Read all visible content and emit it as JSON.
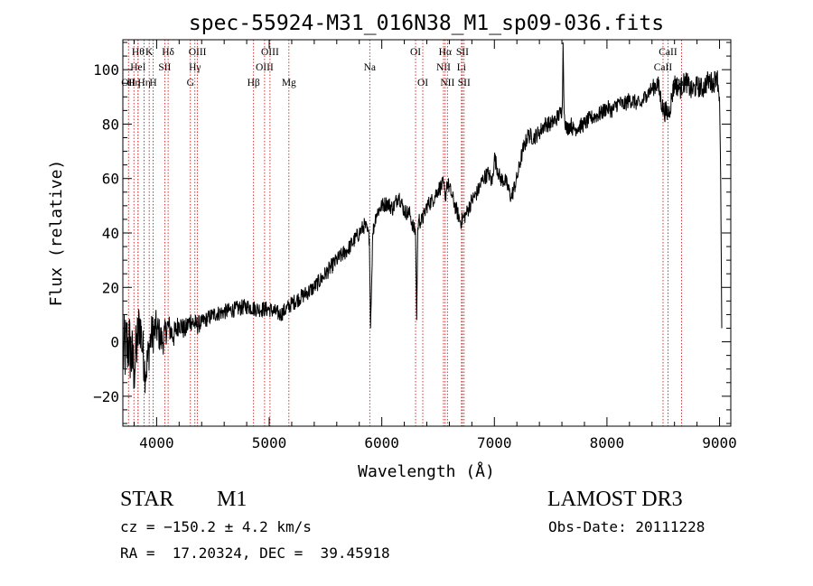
{
  "chart_data": {
    "type": "line",
    "title": "spec-55924-M31_016N38_M1_sp09-036.fits",
    "xlabel": "Wavelength (Å)",
    "ylabel": "Flux (relative)",
    "xlim": [
      3700,
      9100
    ],
    "ylim": [
      -31,
      111
    ],
    "xticks": [
      4000,
      5000,
      6000,
      7000,
      8000,
      9000
    ],
    "yticks": [
      -20,
      0,
      20,
      40,
      60,
      80,
      100
    ],
    "series": [
      {
        "name": "flux",
        "color": "#000000",
        "x": [
          3700,
          3750,
          3800,
          3850,
          3900,
          3950,
          4000,
          4050,
          4100,
          4150,
          4200,
          4250,
          4300,
          4350,
          4400,
          4500,
          4600,
          4700,
          4800,
          4900,
          5000,
          5100,
          5200,
          5300,
          5400,
          5500,
          5600,
          5700,
          5800,
          5850,
          5890,
          5900,
          5920,
          5950,
          6000,
          6050,
          6100,
          6150,
          6200,
          6250,
          6280,
          6300,
          6310,
          6320,
          6330,
          6350,
          6380,
          6400,
          6450,
          6500,
          6550,
          6563,
          6580,
          6620,
          6650,
          6700,
          6750,
          6800,
          6850,
          6900,
          6950,
          6980,
          7000,
          7050,
          7100,
          7150,
          7200,
          7250,
          7300,
          7350,
          7400,
          7450,
          7500,
          7550,
          7600,
          7605,
          7610,
          7620,
          7640,
          7680,
          7700,
          7750,
          7800,
          7850,
          7900,
          7950,
          8000,
          8050,
          8100,
          8150,
          8200,
          8250,
          8300,
          8350,
          8400,
          8450,
          8500,
          8550,
          8600,
          8650,
          8700,
          8750,
          8800,
          8850,
          8900,
          8950,
          8975,
          9000,
          9010,
          9020
        ],
        "y": [
          -5,
          0,
          -10,
          8,
          -12,
          2,
          5,
          0,
          6,
          2,
          7,
          4,
          8,
          6,
          7,
          10,
          11,
          12,
          13,
          12,
          12,
          10,
          14,
          17,
          20,
          25,
          30,
          34,
          40,
          43,
          38,
          5,
          40,
          47,
          50,
          51,
          49,
          54,
          48,
          47,
          42,
          40,
          8,
          42,
          45,
          44,
          47,
          50,
          52,
          56,
          58,
          52,
          59,
          54,
          50,
          44,
          47,
          52,
          55,
          60,
          62,
          58,
          68,
          60,
          59,
          53,
          60,
          70,
          76,
          75,
          77,
          80,
          80,
          82,
          85,
          90,
          110,
          84,
          78,
          80,
          78,
          79,
          80,
          82,
          83,
          84,
          86,
          85,
          88,
          87,
          89,
          88,
          87,
          91,
          93,
          95,
          85,
          84,
          95,
          93,
          96,
          92,
          94,
          93,
          96,
          95,
          99,
          90,
          60,
          5
        ],
        "noise": [
          14,
          14,
          12,
          10,
          8,
          8,
          7,
          6,
          5,
          5,
          4,
          4,
          4,
          4,
          3,
          3,
          3,
          3,
          3,
          3,
          3,
          3,
          3,
          3,
          3,
          3,
          3,
          3,
          3,
          3,
          3,
          0,
          3,
          3,
          3,
          3,
          3,
          3,
          3,
          3,
          3,
          3,
          0,
          3,
          3,
          3,
          3,
          3,
          3,
          3,
          3,
          3,
          3,
          3,
          3,
          3,
          3,
          3,
          3,
          3,
          3,
          3,
          3,
          3,
          3,
          3,
          3,
          3,
          3,
          3,
          3,
          3,
          3,
          3,
          3,
          0,
          0,
          3,
          3,
          3,
          3,
          3,
          3,
          3,
          3,
          3,
          3,
          3,
          3,
          3,
          3,
          3,
          3,
          3,
          3,
          4,
          4,
          4,
          4,
          4,
          4,
          4,
          4,
          4,
          4,
          4,
          4,
          4,
          0,
          0
        ]
      }
    ],
    "lines": [
      {
        "x": 3750,
        "label": "OII",
        "row": 3
      },
      {
        "x": 3798,
        "label": "Hη",
        "row": 3
      },
      {
        "x": 3835,
        "label": "Hθ",
        "row": 1
      },
      {
        "x": 3835,
        "label": "HeI",
        "row": 2
      },
      {
        "x": 3889,
        "label": "Hη",
        "row": 3
      },
      {
        "x": 3934,
        "label": "K",
        "row": 1
      },
      {
        "x": 3969,
        "label": "H",
        "row": 3
      },
      {
        "x": 4072,
        "label": "SII",
        "row": 2
      },
      {
        "x": 4102,
        "label": "Hδ",
        "row": 1
      },
      {
        "x": 4300,
        "label": "G",
        "row": 3
      },
      {
        "x": 4340,
        "label": "Hγ",
        "row": 2
      },
      {
        "x": 4363,
        "label": "OIII",
        "row": 1
      },
      {
        "x": 4861,
        "label": "Hβ",
        "row": 3
      },
      {
        "x": 4959,
        "label": "OIII",
        "row": 2
      },
      {
        "x": 5007,
        "label": "OIII",
        "row": 1
      },
      {
        "x": 5175,
        "label": "Mg",
        "row": 3
      },
      {
        "x": 5893,
        "label": "Na",
        "row": 2
      },
      {
        "x": 6300,
        "label": "OI",
        "row": 1
      },
      {
        "x": 6364,
        "label": "OI",
        "row": 3
      },
      {
        "x": 6548,
        "label": "NII",
        "row": 2
      },
      {
        "x": 6563,
        "label": "Hα",
        "row": 1
      },
      {
        "x": 6583,
        "label": "NII",
        "row": 3
      },
      {
        "x": 6708,
        "label": "Li",
        "row": 2
      },
      {
        "x": 6716,
        "label": "SII",
        "row": 1
      },
      {
        "x": 6731,
        "label": "SII",
        "row": 3
      },
      {
        "x": 8498,
        "label": "CaII",
        "row": 2
      },
      {
        "x": 8542,
        "label": "CaII",
        "row": 1
      },
      {
        "x": 8662,
        "label": "CaII",
        "row": 3
      }
    ]
  },
  "info": {
    "object_type": "STAR",
    "subclass": "M1",
    "survey": "LAMOST DR3",
    "redshift": "cz = −150.2 ± 4.2 km/s",
    "obs_date": "Obs-Date: 20111228",
    "coords": "RA =  17.20324, DEC =  39.45918"
  }
}
